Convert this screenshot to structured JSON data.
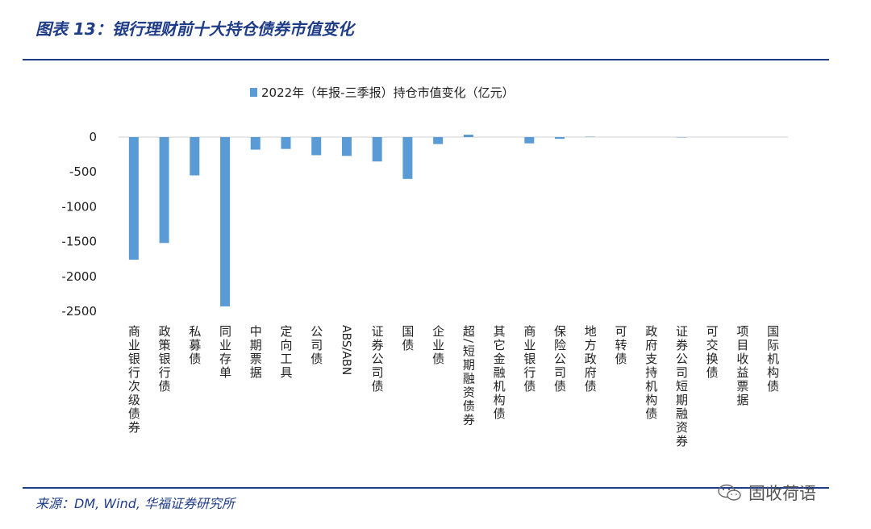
{
  "header": {
    "title": "图表 13：银行理财前十大持仓债券市值变化"
  },
  "footer": {
    "source": "来源：DM, Wind, 华福证券研究所"
  },
  "watermark": {
    "text": "固收荷语"
  },
  "colors": {
    "bar": "#5b9bd5",
    "accent": "#1f3c88",
    "axis": "#d9d9d9"
  },
  "chart_data": {
    "type": "bar",
    "title": "",
    "xlabel": "",
    "ylabel": "",
    "ylim": [
      -2500,
      0
    ],
    "yticks": [
      0,
      -500,
      -1000,
      -1500,
      -2000,
      -2500
    ],
    "legend_position": "top-center",
    "grid": false,
    "categories": [
      "商业银行次级债券",
      "政策银行债",
      "私募债",
      "同业存单",
      "中期票据",
      "定向工具",
      "公司债",
      "ABS/ABN",
      "证券公司债",
      "国债",
      "企业债",
      "超/短期融资债券",
      "其它金融机构债",
      "商业银行债",
      "保险公司债",
      "地方政府债",
      "可转债",
      "政府支持机构债",
      "证券公司短期融资券",
      "可交换债",
      "项目收益票据",
      "国际机构债"
    ],
    "series": [
      {
        "name": "2022年（年报-三季报）持仓市值变化（亿元）",
        "values": [
          -1760,
          -1520,
          -550,
          -2430,
          -180,
          -170,
          -260,
          -270,
          -350,
          -600,
          -100,
          35,
          0,
          -90,
          -25,
          5,
          0,
          0,
          -5,
          0,
          0,
          0
        ]
      }
    ]
  }
}
